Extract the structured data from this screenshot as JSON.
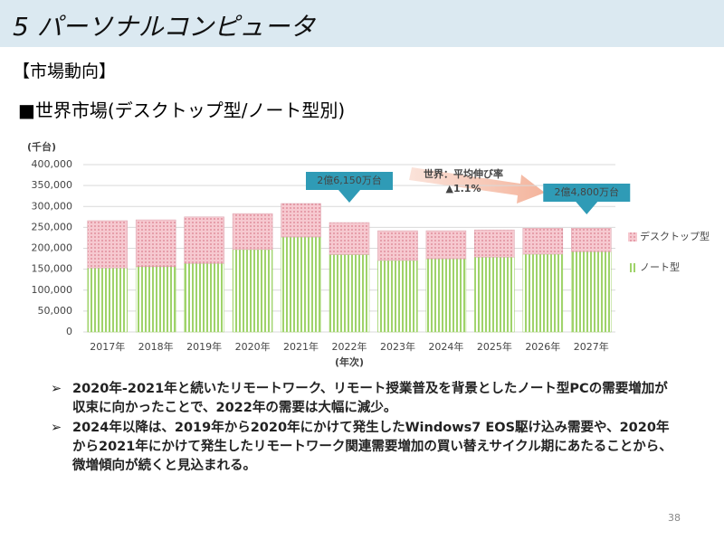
{
  "header": {
    "title": "5 パーソナルコンピュータ"
  },
  "section": "【市場動向】",
  "subtitle": "■世界市場(デスクトップ型/ノート型別)",
  "chart_data": {
    "type": "stacked_bar",
    "y_unit_label": "(千台)",
    "x_label": "(年次)",
    "categories": [
      "2017年",
      "2018年",
      "2019年",
      "2020年",
      "2021年",
      "2022年",
      "2023年",
      "2024年",
      "2025年",
      "2026年",
      "2027年"
    ],
    "series": [
      {
        "name": "デスクトップ型",
        "color": "#f6c9d0",
        "values": [
          113,
          112,
          111,
          86,
          80,
          76.5,
          71,
          67,
          65,
          62,
          56
        ]
      },
      {
        "name": "ノート型",
        "color": "#9fd36a",
        "values": [
          153,
          156,
          164,
          197,
          227,
          185,
          171,
          175,
          179,
          186,
          192
        ]
      }
    ],
    "ylim": [
      0,
      400000
    ],
    "yticks": [
      0,
      {
        "value": 50000,
        "label": "50,000"
      },
      {
        "value": 100000,
        "label": "100,000"
      },
      {
        "value": 150000,
        "label": "150,000"
      },
      {
        "value": 200000,
        "label": "200,000"
      },
      {
        "value": 250000,
        "label": "250,000"
      },
      {
        "value": 300000,
        "label": "300,000"
      },
      {
        "value": 350000,
        "label": "350,000"
      },
      {
        "value": 400000,
        "label": "400,000"
      }
    ],
    "value_scale": 1000,
    "grid": true,
    "legend": "right",
    "annotations": [
      "2億6,150万台",
      "世界：平均伸び率",
      "▲1.1%",
      "2億4,800万台"
    ]
  },
  "bullets": [
    "2020年-2021年と続いたリモートワーク、リモート授業普及を背景としたノート型PCの需要増加が収束に向かったことで、2022年の需要は大幅に減少。",
    "2024年以降は、2019年から2020年にかけて発生したWindows7 EOS駆け込み需要や、2020年から2021年にかけて発生したリモートワーク関連需要増加の買い替えサイクル期にあたることから、微増傾向が続くと見込まれる。"
  ],
  "page_number": "38"
}
